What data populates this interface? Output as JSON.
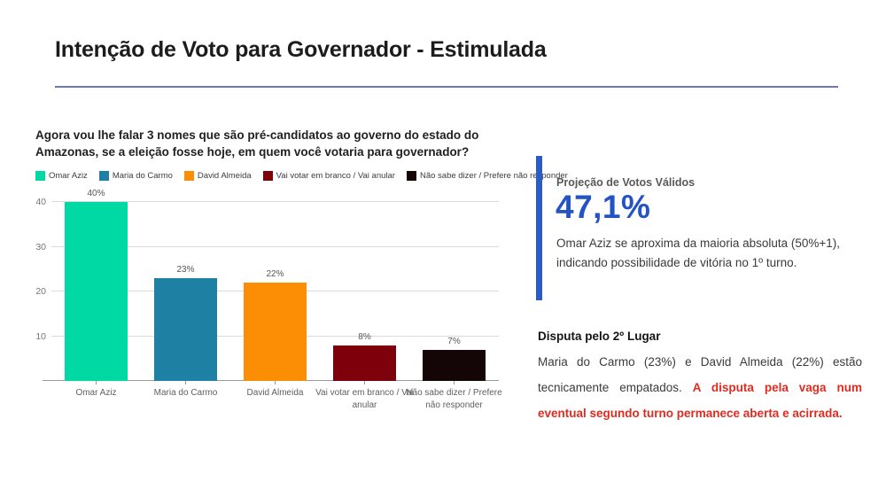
{
  "slide": {
    "title": "Intenção de Voto para Governador - Estimulada"
  },
  "question": "Agora vou lhe falar 3 nomes que são pré-candidatos ao governo do estado do Amazonas, se a eleição fosse hoje, em quem você votaria para governador?",
  "chart_data": {
    "type": "bar",
    "title": "Agora vou lhe falar 3 nomes que são pré-candidatos ao governo do estado do Amazonas, se a eleição fosse hoje, em quem você votaria para governador?",
    "categories": [
      "Omar Aziz",
      "Maria do Carmo",
      "David Almeida",
      "Vai votar em branco / Vai anular",
      "Não sabe dizer / Prefere não responder"
    ],
    "values": [
      40,
      23,
      22,
      8,
      7
    ],
    "value_labels": [
      "40%",
      "23%",
      "22%",
      "8%",
      "7%"
    ],
    "colors": [
      "#00d9a4",
      "#1e81a3",
      "#fb8e04",
      "#7d000b",
      "#140606"
    ],
    "xlabel": "",
    "ylabel": "",
    "ylim": [
      0,
      40
    ],
    "yticks": [
      10,
      20,
      30,
      40
    ],
    "grid": true,
    "legend_position": "top-left"
  },
  "right_panel": {
    "projection": {
      "label": "Projeção de Votos Válidos",
      "value": "47,1%",
      "description": "Omar Aziz se aproxima da maioria absoluta (50%+1), indicando possibilidade de vitória no 1º turno."
    },
    "dispute": {
      "heading": "Disputa pelo 2º Lugar",
      "text_normal": "Maria do Carmo (23%) e David Almeida (22%) estão tecnicamente empatados. ",
      "text_highlight": "A disputa pela vaga num eventual segundo turno permanece aberta e acirrada."
    }
  },
  "colors": {
    "accent_blue": "#2b5bc7",
    "value_blue": "#2353c5",
    "title_rule_blue": "#6b78ba",
    "highlight_red": "#e02b20"
  }
}
